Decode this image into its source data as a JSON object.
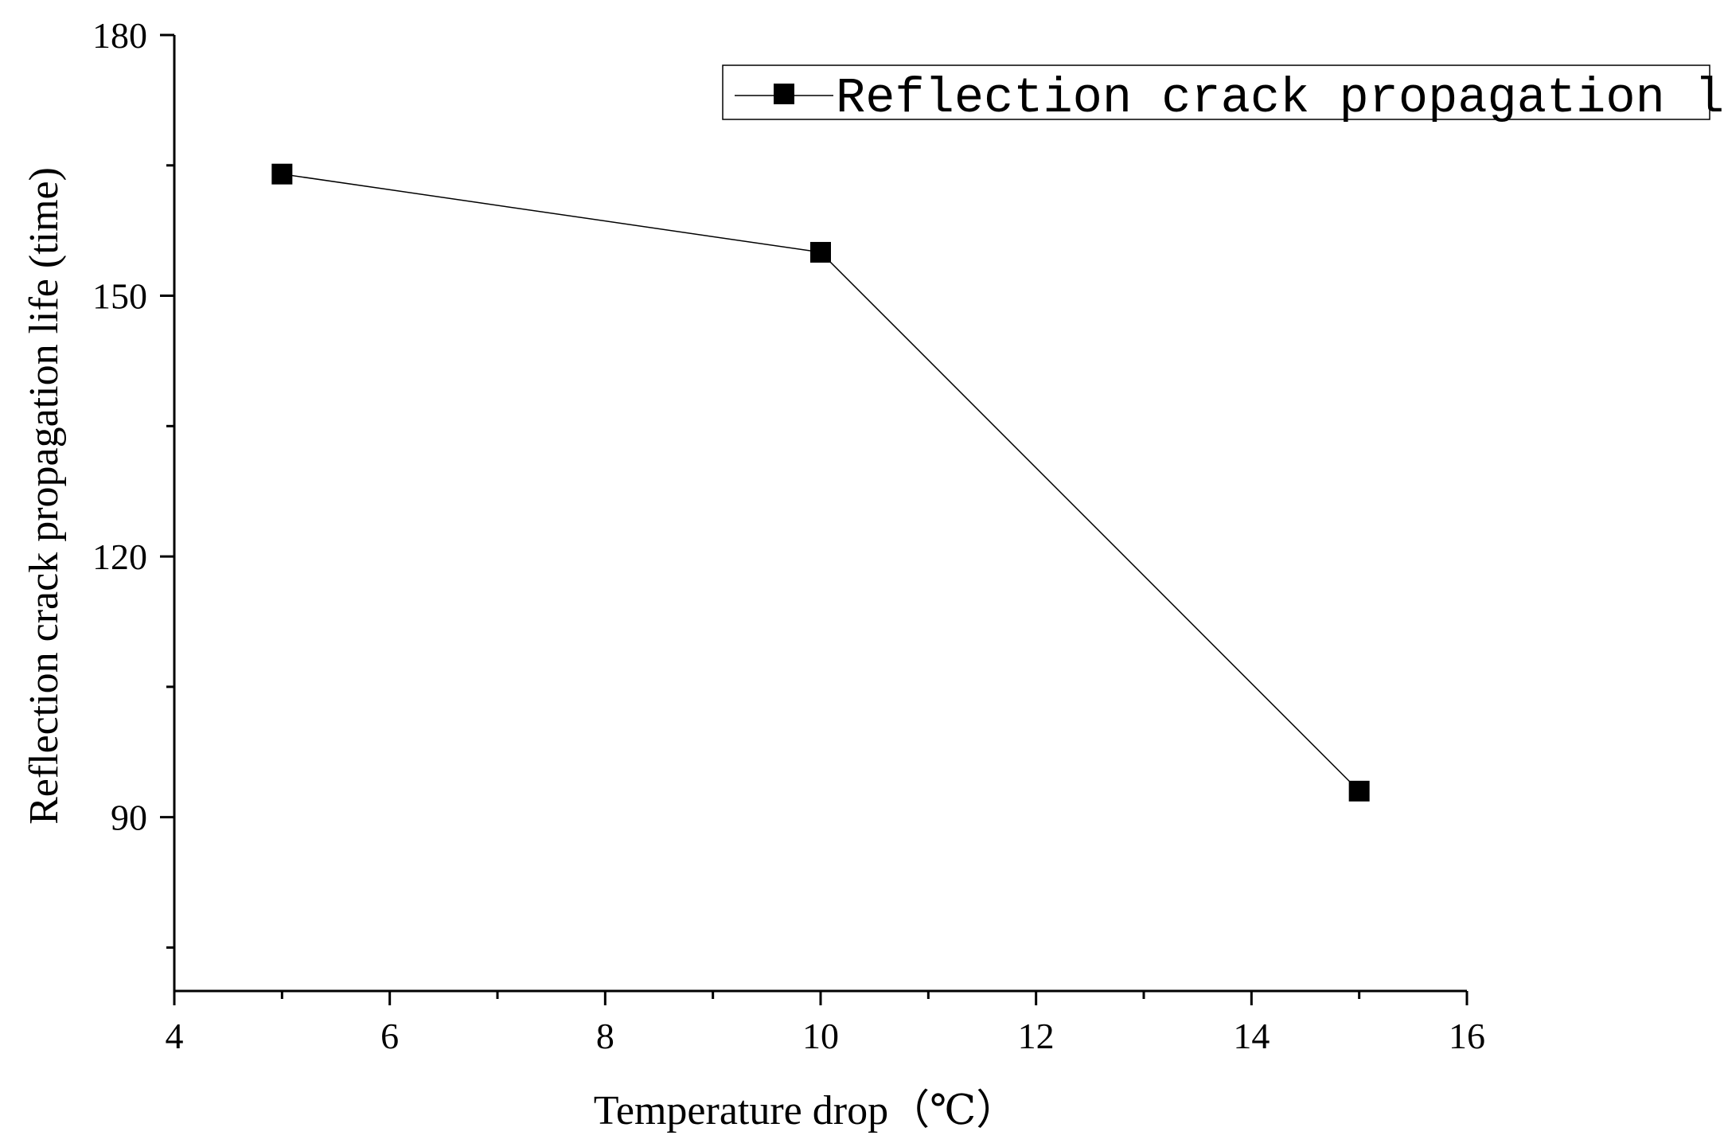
{
  "chart_data": {
    "type": "line",
    "title": "",
    "xlabel": "Temperature drop（℃）",
    "ylabel": "Reflection crack propagation life (time)",
    "xlim": [
      4,
      16
    ],
    "ylim": [
      70,
      180
    ],
    "x_major_ticks": [
      4,
      6,
      8,
      10,
      12,
      14,
      16
    ],
    "x_minor_ticks": [
      5,
      7,
      9,
      11,
      13,
      15
    ],
    "y_major_ticks": [
      90,
      120,
      150,
      180
    ],
    "y_minor_ticks": [
      75,
      105,
      135,
      165
    ],
    "grid": false,
    "legend_position": "top-right",
    "series": [
      {
        "name": "Reflection crack propagation life",
        "marker": "square",
        "color": "#000000",
        "x": [
          5,
          10,
          15
        ],
        "y": [
          164,
          155,
          93
        ]
      }
    ]
  }
}
